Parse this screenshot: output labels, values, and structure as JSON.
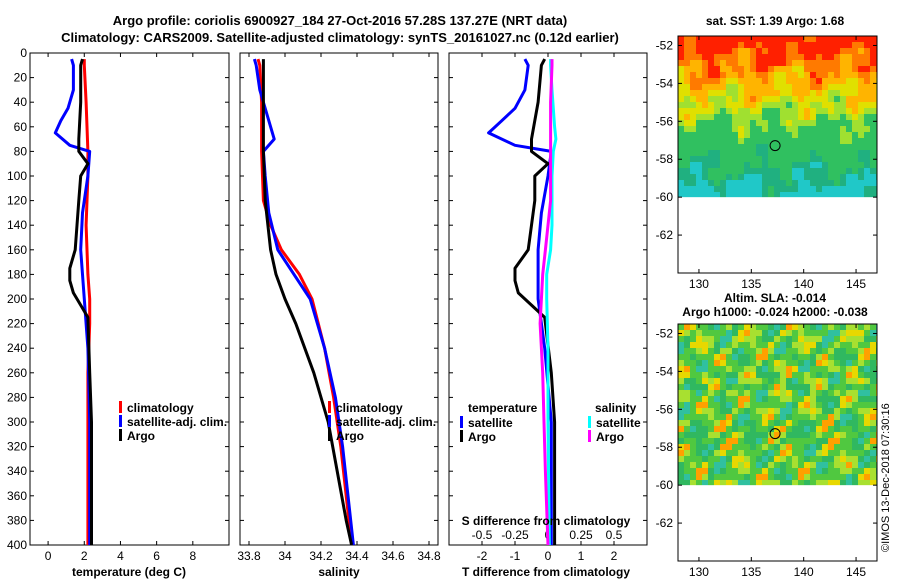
{
  "title_line1": "Argo profile: coriolis 6900927_184 27-Oct-2016 57.28S 137.27E (NRT data)",
  "title_line2": "Climatology: CARS2009. Satellite-adjusted climatology: synTS_20161027.nc (0.12d earlier)",
  "watermark": "©IMOS 13-Dec-2018 07:30:16",
  "colors": {
    "climatology": "#ff0000",
    "satellite": "#0000ff",
    "argo": "#000000",
    "sat_salinity": "#00ffff",
    "argo_salinity": "#ff00ff"
  },
  "chart_data": [
    {
      "type": "line",
      "id": "temperature",
      "xlabel": "temperature (deg C)",
      "xlim": [
        -1,
        10
      ],
      "xticks": [
        0,
        2,
        4,
        6,
        8
      ],
      "xtick_labels": [
        "0",
        "2",
        "4",
        "6",
        "8"
      ],
      "ylim": [
        0,
        400
      ],
      "yticks": [
        0,
        20,
        40,
        60,
        80,
        100,
        120,
        140,
        160,
        180,
        200,
        220,
        240,
        260,
        280,
        300,
        320,
        340,
        360,
        380,
        400
      ],
      "legend": [
        "climatology",
        "satellite-adj. clim.",
        "Argo"
      ],
      "series": [
        {
          "name": "climatology",
          "color": "#ff0000",
          "depth": [
            5,
            10,
            40,
            80,
            100,
            140,
            180,
            200,
            220,
            260,
            300,
            400
          ],
          "values": [
            2.0,
            2.0,
            2.1,
            2.2,
            2.2,
            2.1,
            2.2,
            2.3,
            2.3,
            2.2,
            2.2,
            2.2
          ]
        },
        {
          "name": "satellite-adj. clim.",
          "color": "#0000ff",
          "depth": [
            5,
            10,
            30,
            45,
            55,
            65,
            75,
            80,
            100,
            130,
            160,
            200,
            240,
            300,
            400
          ],
          "values": [
            1.3,
            1.4,
            1.4,
            1.1,
            0.7,
            0.4,
            1.2,
            2.3,
            2.2,
            1.9,
            1.8,
            2.0,
            2.2,
            2.3,
            2.3
          ]
        },
        {
          "name": "Argo",
          "color": "#000000",
          "depth": [
            5,
            10,
            40,
            70,
            80,
            90,
            100,
            120,
            140,
            160,
            175,
            185,
            195,
            205,
            215,
            260,
            300,
            400
          ],
          "values": [
            1.9,
            1.8,
            1.8,
            1.7,
            1.7,
            2.2,
            1.8,
            1.7,
            1.6,
            1.5,
            1.2,
            1.2,
            1.4,
            1.8,
            2.2,
            2.3,
            2.4,
            2.4
          ]
        }
      ]
    },
    {
      "type": "line",
      "id": "salinity",
      "xlabel": "salinity",
      "xlim": [
        33.75,
        34.85
      ],
      "xticks": [
        33.8,
        34,
        34.2,
        34.4,
        34.6,
        34.8
      ],
      "xtick_labels": [
        "33.8",
        "34",
        "34.2",
        "34.4",
        "34.6",
        "34.8"
      ],
      "ylim": [
        0,
        400
      ],
      "legend": [
        "climatology",
        "satellite-adj. clim.",
        "Argo"
      ],
      "series": [
        {
          "name": "climatology",
          "color": "#ff0000",
          "depth": [
            5,
            10,
            40,
            80,
            120,
            140,
            160,
            180,
            200,
            240,
            280,
            320,
            360,
            400
          ],
          "values": [
            33.85,
            33.86,
            33.87,
            33.87,
            33.88,
            33.92,
            33.98,
            34.08,
            34.15,
            34.22,
            34.27,
            34.31,
            34.34,
            34.37
          ]
        },
        {
          "name": "satellite-adj. clim.",
          "color": "#0000ff",
          "depth": [
            5,
            10,
            30,
            50,
            70,
            80,
            100,
            130,
            160,
            180,
            200,
            240,
            280,
            320,
            360,
            400
          ],
          "values": [
            33.83,
            33.84,
            33.86,
            33.9,
            33.94,
            33.88,
            33.89,
            33.91,
            33.96,
            34.05,
            34.14,
            34.22,
            34.28,
            34.32,
            34.35,
            34.38
          ]
        },
        {
          "name": "Argo",
          "color": "#000000",
          "depth": [
            5,
            10,
            40,
            80,
            120,
            160,
            180,
            200,
            220,
            260,
            300,
            340,
            380,
            400
          ],
          "values": [
            33.88,
            33.88,
            33.88,
            33.88,
            33.89,
            33.92,
            33.95,
            34.0,
            34.06,
            34.16,
            34.24,
            34.29,
            34.34,
            34.37
          ]
        }
      ]
    },
    {
      "type": "line",
      "id": "difference",
      "xlabel": "T difference from climatology",
      "xlim": [
        -3.0,
        3.0
      ],
      "xticks": [
        -2,
        -1,
        0,
        1,
        2
      ],
      "xtick_labels": [
        "-2",
        "-1",
        "0",
        "1",
        "2"
      ],
      "s_axis_label": "S difference from climatology",
      "s_ticks": [
        -0.5,
        -0.25,
        0,
        0.25,
        0.5
      ],
      "s_tick_labels": [
        "-0.5",
        "-0.25",
        "0",
        "0.25",
        "0.5"
      ],
      "ylim": [
        0,
        400
      ],
      "legend_temperature": {
        "title": "temperature",
        "items": [
          "satellite",
          "Argo"
        ]
      },
      "legend_salinity": {
        "title": "salinity",
        "items": [
          "satellite",
          "Argo"
        ]
      },
      "series": [
        {
          "name": "temperature satellite",
          "color": "#0000ff",
          "axis": "T",
          "depth": [
            5,
            10,
            30,
            45,
            55,
            65,
            75,
            80,
            100,
            130,
            160,
            200,
            240,
            300,
            400
          ],
          "values": [
            -0.7,
            -0.6,
            -0.7,
            -1.0,
            -1.4,
            -1.8,
            -1.0,
            0.1,
            0.0,
            -0.2,
            -0.3,
            -0.3,
            -0.1,
            0.1,
            0.1
          ]
        },
        {
          "name": "temperature Argo",
          "color": "#000000",
          "axis": "T",
          "depth": [
            5,
            10,
            40,
            70,
            80,
            90,
            100,
            120,
            140,
            160,
            175,
            185,
            195,
            205,
            215,
            260,
            300,
            400
          ],
          "values": [
            -0.1,
            -0.2,
            -0.3,
            -0.5,
            -0.5,
            0.0,
            -0.4,
            -0.4,
            -0.5,
            -0.6,
            -1.0,
            -1.0,
            -0.9,
            -0.5,
            -0.1,
            0.1,
            0.2,
            0.2
          ]
        },
        {
          "name": "salinity satellite",
          "color": "#00ffff",
          "axis": "S",
          "depth": [
            5,
            10,
            30,
            60,
            70,
            80,
            100,
            140,
            160,
            180,
            200,
            240,
            300,
            400
          ],
          "values": [
            0.02,
            0.02,
            0.03,
            0.05,
            0.06,
            0.04,
            0.03,
            0.03,
            0.02,
            -0.01,
            -0.01,
            0.0,
            0.0,
            0.01
          ]
        },
        {
          "name": "salinity Argo",
          "color": "#ff00ff",
          "axis": "S",
          "depth": [
            5,
            10,
            40,
            80,
            120,
            160,
            180,
            200,
            220,
            260,
            300,
            340,
            400
          ],
          "values": [
            0.03,
            0.03,
            0.02,
            0.02,
            0.02,
            -0.02,
            -0.04,
            -0.05,
            -0.06,
            -0.04,
            -0.03,
            -0.02,
            0.0
          ]
        }
      ]
    },
    {
      "type": "heatmap",
      "id": "sst_map",
      "title": "sat. SST: 1.39 Argo: 1.68",
      "xlim": [
        128,
        147
      ],
      "ylim": [
        -64,
        -51.5
      ],
      "data_ylim": [
        -60,
        -51.5
      ],
      "xticks": [
        130,
        135,
        140,
        145
      ],
      "xtick_labels": [
        "130",
        "135",
        "140",
        "145"
      ],
      "yticks": [
        -52,
        -54,
        -56,
        -58,
        -60,
        -62
      ],
      "ytick_labels": [
        "-52",
        "-54",
        "-56",
        "-58",
        "-60",
        "-62"
      ],
      "marker": {
        "lon": 137.27,
        "lat": -57.28
      }
    },
    {
      "type": "heatmap",
      "id": "sla_map",
      "title": "Altim. SLA: -0.014",
      "subtitle": "Argo h1000: -0.024 h2000: -0.038",
      "xlim": [
        128,
        147
      ],
      "ylim": [
        -64,
        -51.5
      ],
      "data_ylim": [
        -60,
        -51.5
      ],
      "xticks": [
        130,
        135,
        140,
        145
      ],
      "xtick_labels": [
        "130",
        "135",
        "140",
        "145"
      ],
      "yticks": [
        -52,
        -54,
        -56,
        -58,
        -60,
        -62
      ],
      "ytick_labels": [
        "-52",
        "-54",
        "-56",
        "-58",
        "-60",
        "-62"
      ],
      "marker": {
        "lon": 137.27,
        "lat": -57.28
      }
    }
  ]
}
